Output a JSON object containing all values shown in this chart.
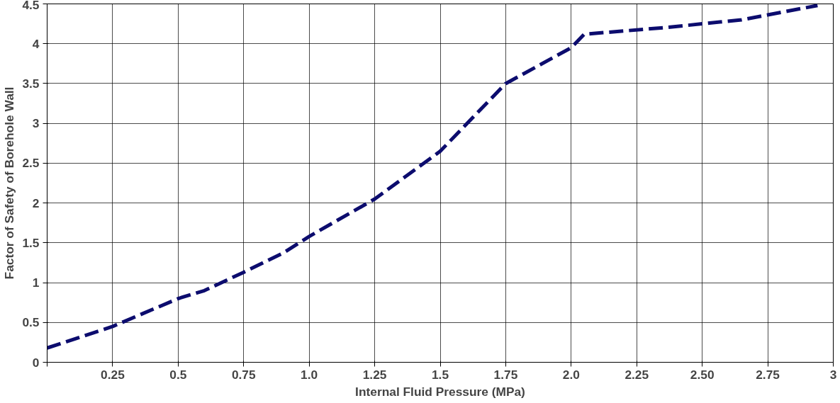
{
  "chart_data": {
    "type": "line",
    "xlabel": "Internal Fluid Pressure (MPa)",
    "ylabel": "Factor of Safety of Borehole Wall",
    "x": [
      0,
      0.25,
      0.5,
      0.6,
      0.75,
      0.9,
      1.0,
      1.25,
      1.5,
      1.75,
      2.0,
      2.05,
      2.35,
      2.65,
      2.94
    ],
    "series": [
      {
        "color": "#0c0c6e",
        "values": [
          0.18,
          0.45,
          0.8,
          0.9,
          1.13,
          1.37,
          1.58,
          2.05,
          2.65,
          3.5,
          3.95,
          4.12,
          4.2,
          4.3,
          4.48
        ]
      }
    ],
    "xlim": [
      0,
      3
    ],
    "ylim": [
      0,
      4.5
    ],
    "xticks": [
      {
        "value": 0,
        "label": null
      },
      0.25,
      0.5,
      0.75,
      {
        "value": 1,
        "label": "1.0"
      },
      1.25,
      1.5,
      1.75,
      {
        "value": 2,
        "label": "2.0"
      },
      2.25,
      {
        "value": 2.5,
        "label": "2.50"
      },
      2.75,
      3
    ],
    "yticks": [
      0,
      0.5,
      1,
      1.5,
      2,
      2.5,
      3,
      3.5,
      4,
      4.5
    ],
    "grid": true,
    "marker": "none",
    "line_style": "dashed"
  }
}
